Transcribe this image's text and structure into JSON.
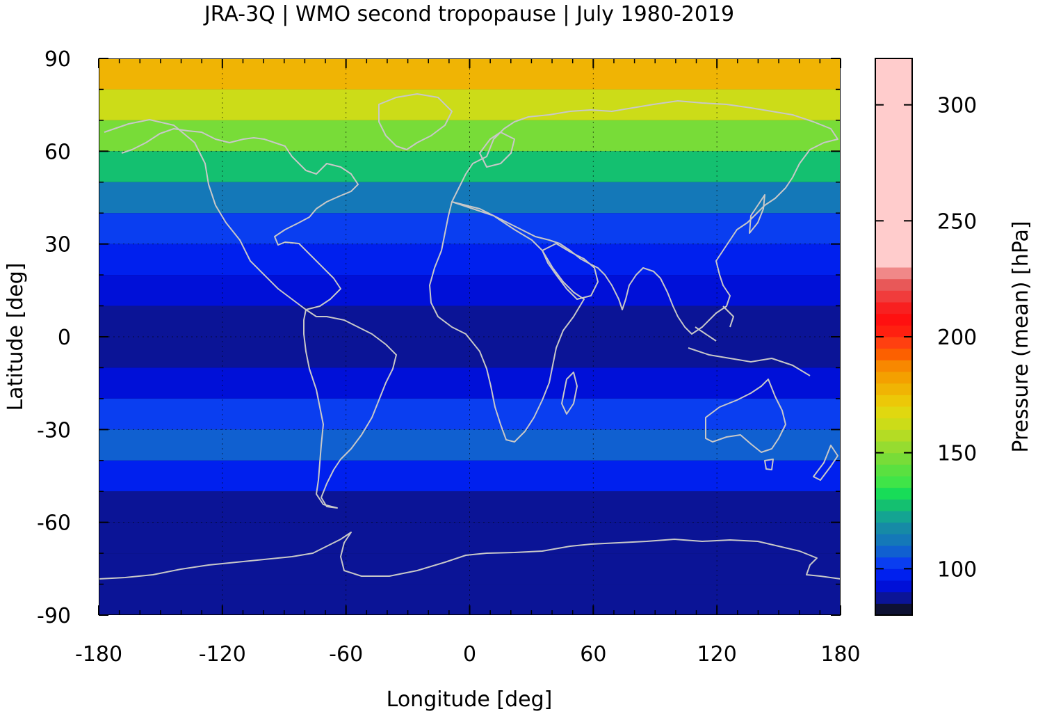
{
  "chart_data": {
    "type": "heatmap",
    "title": "JRA-3Q | WMO second tropopause | July 1980-2019",
    "xlabel": "Longitude [deg]",
    "ylabel": "Latitude [deg]",
    "xlim": [
      -180,
      180
    ],
    "ylim": [
      -90,
      90
    ],
    "xticks": [
      -180,
      -120,
      -60,
      0,
      60,
      120,
      180
    ],
    "xtick_labels": [
      "-180",
      "-120",
      "-60",
      "0",
      "60",
      "120",
      "180"
    ],
    "yticks": [
      90,
      60,
      30,
      0,
      -30,
      -60,
      -90
    ],
    "ytick_labels": [
      "90",
      "60",
      "30",
      "0",
      "-30",
      "-60",
      "-90"
    ],
    "grid": true,
    "colorbar": {
      "label": "Pressure (mean) [hPa]",
      "range": [
        80,
        320
      ],
      "step": 5,
      "ticks": [
        100,
        150,
        200,
        250,
        300
      ],
      "tick_labels": [
        "100",
        "150",
        "200",
        "250",
        "300"
      ],
      "colors": [
        "#0e1133",
        "#0b1496",
        "#0010d8",
        "#0020ee",
        "#0a3ef0",
        "#1060d0",
        "#1478b8",
        "#168aa6",
        "#14a492",
        "#14c070",
        "#18dc58",
        "#40e448",
        "#5ae040",
        "#78dc38",
        "#96dc30",
        "#b4dc24",
        "#ccdc18",
        "#e0d810",
        "#ecc808",
        "#f0b404",
        "#f4a000",
        "#f88800",
        "#fc6000",
        "#ff4010",
        "#ff2010",
        "#ff1010",
        "#f82020",
        "#f03c3c",
        "#e85858",
        "#f08888",
        "#ffcccc"
      ]
    },
    "latitude_band_mean_hpa": [
      {
        "lat": 85,
        "value": 175
      },
      {
        "lat": 75,
        "value": 160
      },
      {
        "lat": 65,
        "value": 145
      },
      {
        "lat": 55,
        "value": 125
      },
      {
        "lat": 45,
        "value": 110
      },
      {
        "lat": 35,
        "value": 100
      },
      {
        "lat": 25,
        "value": 95
      },
      {
        "lat": 15,
        "value": 90
      },
      {
        "lat": 5,
        "value": 85
      },
      {
        "lat": -5,
        "value": 85
      },
      {
        "lat": -15,
        "value": 90
      },
      {
        "lat": -25,
        "value": 100
      },
      {
        "lat": -35,
        "value": 105
      },
      {
        "lat": -45,
        "value": 95
      },
      {
        "lat": -55,
        "value": 85
      },
      {
        "lat": -65,
        "value": 85
      },
      {
        "lat": -75,
        "value": 85
      },
      {
        "lat": -85,
        "value": 85
      }
    ],
    "overlay": "coastlines"
  }
}
